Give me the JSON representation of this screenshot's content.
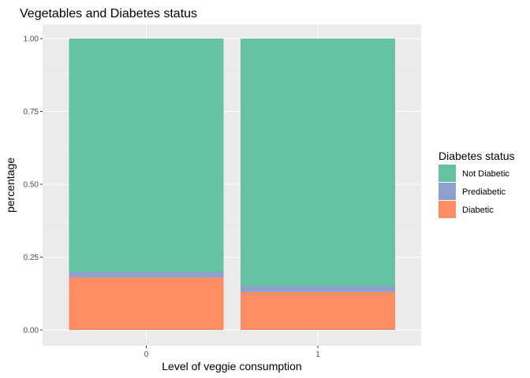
{
  "chart_data": {
    "type": "bar",
    "stacked": true,
    "title": "Vegetables and Diabetes status",
    "xlabel": "Level of veggie consumption",
    "ylabel": "percentage",
    "categories": [
      "0",
      "1"
    ],
    "ylim": [
      0,
      1
    ],
    "yticks": [
      0.0,
      0.25,
      0.5,
      0.75,
      1.0
    ],
    "ytick_labels": [
      "0.00",
      "0.25",
      "0.50",
      "0.75",
      "1.00"
    ],
    "grid": true,
    "legend_position": "right",
    "legend_title": "Diabetes status",
    "series": [
      {
        "name": "Diabetic",
        "color": "#FC8D62",
        "values": [
          0.18,
          0.13
        ]
      },
      {
        "name": "Prediabetic",
        "color": "#8DA0CB",
        "values": [
          0.02,
          0.02
        ]
      },
      {
        "name": "Not Diabetic",
        "color": "#66C2A5",
        "values": [
          0.8,
          0.85
        ]
      }
    ],
    "legend_order": [
      "Not Diabetic",
      "Prediabetic",
      "Diabetic"
    ]
  },
  "colors": {
    "panel_background": "#EBEBEB",
    "grid_major": "#FFFFFF",
    "text": "#000000",
    "tick_text": "#4D4D4D"
  }
}
